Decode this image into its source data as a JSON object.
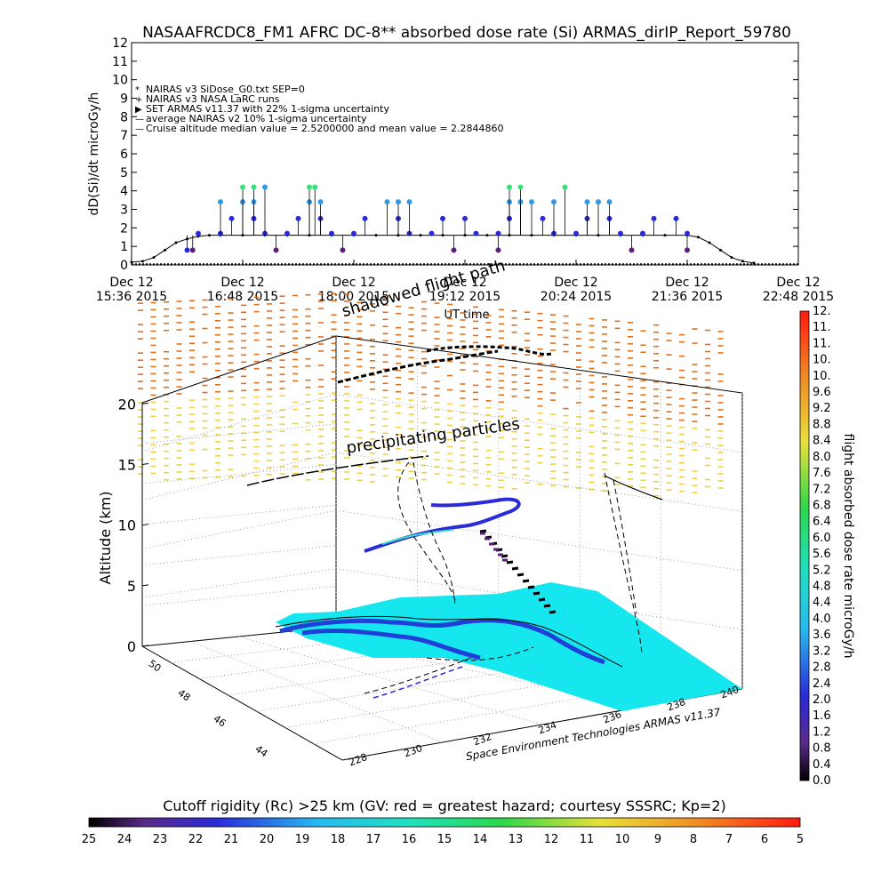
{
  "chart_data": [
    {
      "type": "scatter",
      "title": "NASAAFRCDC8_FM1 AFRC DC-8** absorbed dose rate (Si) ARMAS_dirIP_Report_59780",
      "xlabel": "UT time",
      "ylabel": "dD(Si)/dt microGy/h",
      "ylim": [
        0,
        12
      ],
      "yticks": [
        "0",
        "1",
        "2",
        "3",
        "4",
        "5",
        "6",
        "7",
        "8",
        "9",
        "10",
        "11",
        "12"
      ],
      "xticks": [
        {
          "date": "Dec 12",
          "time": "15:36 2015"
        },
        {
          "date": "Dec 12",
          "time": "16:48 2015"
        },
        {
          "date": "Dec 12",
          "time": "18:00 2015"
        },
        {
          "date": "Dec 12",
          "time": "19:12 2015"
        },
        {
          "date": "Dec 12",
          "time": "20:24 2015"
        },
        {
          "date": "Dec 12",
          "time": "21:36 2015"
        },
        {
          "date": "Dec 12",
          "time": "22:48 2015"
        }
      ],
      "legend": [
        "NAIRAS v3 SiDose_G0.txt SEP=0",
        "NAIRAS v3 NASA LaRC runs",
        "SET ARMAS v11.37 with 22% 1-sigma uncertainty",
        "average NAIRAS v2 10% 1-sigma uncertainty",
        "Cruise altitude median value = 2.5200000 and mean value = 2.2844860"
      ],
      "legend_position": "top-left",
      "series": [
        {
          "values": [
            [
              0.0,
              0.15
            ],
            [
              0.1,
              0.2
            ],
            [
              0.2,
              0.4
            ],
            [
              0.3,
              0.8
            ],
            [
              0.4,
              1.2
            ],
            [
              0.5,
              1.4
            ],
            [
              0.6,
              1.55
            ],
            [
              0.7,
              1.6
            ],
            [
              0.8,
              1.6
            ],
            [
              1.0,
              1.6
            ],
            [
              1.2,
              1.6
            ],
            [
              1.4,
              1.6
            ],
            [
              1.6,
              1.6
            ],
            [
              1.8,
              1.6
            ],
            [
              2.0,
              1.6
            ],
            [
              2.2,
              1.6
            ],
            [
              2.4,
              1.6
            ],
            [
              2.6,
              1.6
            ],
            [
              2.8,
              1.6
            ],
            [
              3.0,
              1.6
            ],
            [
              3.2,
              1.6
            ],
            [
              3.4,
              1.6
            ],
            [
              3.6,
              1.6
            ],
            [
              3.8,
              1.6
            ],
            [
              4.0,
              1.6
            ],
            [
              4.2,
              1.6
            ],
            [
              4.4,
              1.6
            ],
            [
              4.6,
              1.6
            ],
            [
              4.8,
              1.6
            ],
            [
              5.0,
              1.6
            ],
            [
              5.1,
              1.5
            ],
            [
              5.2,
              1.2
            ],
            [
              5.3,
              0.8
            ],
            [
              5.4,
              0.4
            ],
            [
              5.5,
              0.2
            ],
            [
              5.6,
              0.1
            ]
          ]
        },
        {
          "values": [
            [
              0.5,
              0.8
            ],
            [
              0.6,
              1.7
            ],
            [
              0.8,
              1.7
            ],
            [
              0.9,
              2.5
            ],
            [
              1.1,
              2.5
            ],
            [
              1.2,
              1.7
            ],
            [
              1.4,
              1.7
            ],
            [
              1.5,
              2.5
            ],
            [
              1.7,
              2.5
            ],
            [
              1.8,
              1.7
            ],
            [
              2.0,
              1.7
            ],
            [
              2.1,
              2.5
            ],
            [
              2.4,
              2.5
            ],
            [
              2.5,
              1.7
            ],
            [
              2.7,
              1.7
            ],
            [
              2.8,
              2.5
            ],
            [
              3.0,
              2.5
            ],
            [
              3.1,
              1.7
            ],
            [
              3.3,
              1.7
            ],
            [
              3.4,
              2.5
            ],
            [
              3.7,
              2.5
            ],
            [
              3.8,
              1.7
            ],
            [
              4.0,
              1.7
            ],
            [
              4.1,
              2.5
            ],
            [
              4.3,
              2.5
            ],
            [
              4.4,
              1.7
            ],
            [
              4.6,
              1.7
            ],
            [
              4.7,
              2.5
            ],
            [
              4.9,
              2.5
            ],
            [
              5.0,
              1.7
            ]
          ]
        },
        {
          "values": [
            [
              0.8,
              3.4
            ],
            [
              1.0,
              3.4
            ],
            [
              1.1,
              3.4
            ],
            [
              1.2,
              4.2
            ],
            [
              1.6,
              3.4
            ],
            [
              1.7,
              3.4
            ],
            [
              2.3,
              3.4
            ],
            [
              2.4,
              3.4
            ],
            [
              2.5,
              3.4
            ],
            [
              3.4,
              3.4
            ],
            [
              3.5,
              3.4
            ],
            [
              3.6,
              3.4
            ],
            [
              3.8,
              3.4
            ],
            [
              4.1,
              3.4
            ],
            [
              4.2,
              3.4
            ],
            [
              4.3,
              3.4
            ]
          ]
        },
        {
          "values": [
            [
              1.0,
              4.2
            ],
            [
              1.1,
              4.2
            ],
            [
              1.6,
              4.2
            ],
            [
              1.65,
              4.2
            ],
            [
              3.4,
              4.2
            ],
            [
              3.5,
              4.2
            ],
            [
              3.9,
              4.2
            ]
          ]
        },
        {
          "values": [
            [
              0.55,
              0.8
            ],
            [
              1.3,
              0.8
            ],
            [
              1.9,
              0.8
            ],
            [
              2.9,
              0.8
            ],
            [
              3.3,
              0.8
            ],
            [
              4.5,
              0.8
            ],
            [
              5.0,
              0.8
            ]
          ]
        }
      ]
    },
    {
      "type": "scatter",
      "xlabel": "",
      "ylabel": "Altitude (km)",
      "zticks": [
        "0",
        "5",
        "10",
        "15",
        "20"
      ],
      "lat_ticks": [
        "44",
        "46",
        "48",
        "50"
      ],
      "lon_ticks": [
        "228",
        "230",
        "232",
        "234",
        "236",
        "238",
        "240"
      ],
      "annotations": [
        "shadowed flight path",
        "precipitating particles"
      ],
      "footer": "Space Environment Technologies ARMAS v11.37"
    },
    {
      "type": "heatmap",
      "ylabel": "flight absorbed dose rate microGy/h",
      "ticks": [
        "0.0",
        "0.4",
        "0.8",
        "1.2",
        "1.6",
        "2.0",
        "2.4",
        "2.8",
        "3.2",
        "3.6",
        "4.0",
        "4.4",
        "4.8",
        "5.2",
        "5.6",
        "6.0",
        "6.4",
        "6.8",
        "7.2",
        "7.6",
        "8.0",
        "8.4",
        "8.8",
        "9.2",
        "9.6",
        "10.",
        "10.",
        "11.",
        "11.",
        "12."
      ]
    },
    {
      "type": "heatmap",
      "title": "Cutoff rigidity (Rc) >25 km (GV: red = greatest hazard; courtesy SSSRC; Kp=2)",
      "ticks": [
        "25",
        "24",
        "23",
        "22",
        "21",
        "20",
        "19",
        "18",
        "17",
        "16",
        "15",
        "14",
        "13",
        "12",
        "11",
        "10",
        "9",
        "8",
        "7",
        "6",
        "5"
      ]
    }
  ],
  "colors": {
    "nairas_v3": "#000000",
    "armas_low": "#2a2ad8",
    "armas_mid": "#2f9be8",
    "armas_high": "#36e3c2",
    "armas_peak": "#3ae07a",
    "armas_min": "#5c1f7a",
    "ground": "#16e6ee",
    "coast": "#1f3fd8",
    "dashes_high": "#e0701c",
    "dashes_low": "#f0d040"
  }
}
